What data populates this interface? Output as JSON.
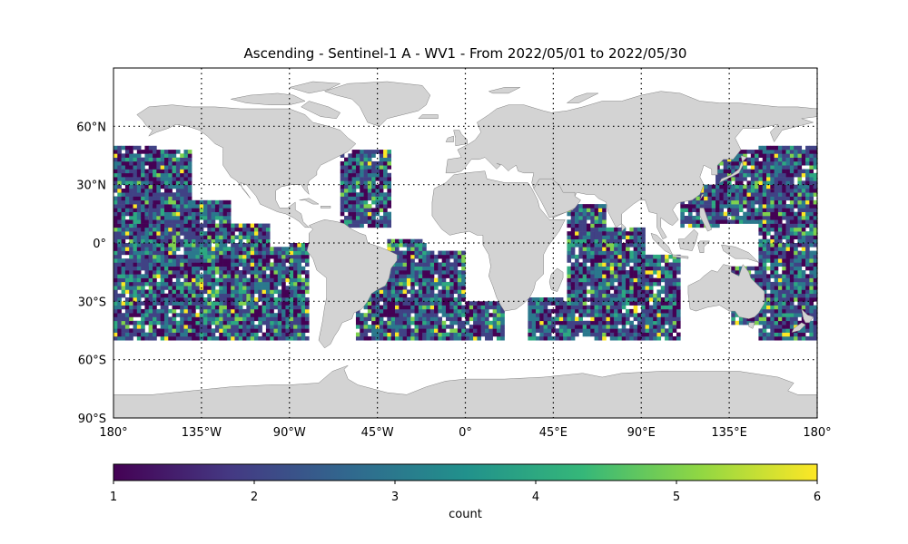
{
  "chart_data": {
    "type": "heatmap",
    "title": "Ascending - Sentinel-1 A - WV1 - From 2022/05/01 to 2022/05/30",
    "projection": "plate-carree",
    "xlim": [
      -180,
      180
    ],
    "ylim": [
      -90,
      90
    ],
    "grid": true,
    "x_tick_values": [
      -180,
      -135,
      -90,
      -45,
      0,
      45,
      90,
      135,
      180
    ],
    "x_tick_labels": [
      "180°",
      "135°W",
      "90°W",
      "45°W",
      "0°",
      "45°E",
      "90°E",
      "135°E",
      "180°"
    ],
    "y_tick_values": [
      60,
      30,
      0,
      -30,
      -60,
      -90
    ],
    "y_tick_labels": [
      "60°N",
      "30°N",
      "0°",
      "30°S",
      "60°S",
      "90°S"
    ],
    "data_lat_range": [
      -50,
      50
    ],
    "cell_size_deg": 2,
    "swaths": [
      {
        "lon_min": -180,
        "lon_max": -158,
        "lat_min": -50,
        "lat_max": 50
      },
      {
        "lon_min": -162,
        "lon_max": -140,
        "lat_min": -50,
        "lat_max": 48
      },
      {
        "lon_min": -144,
        "lon_max": -120,
        "lat_min": -50,
        "lat_max": 22
      },
      {
        "lon_min": -124,
        "lon_max": -100,
        "lat_min": -50,
        "lat_max": 10
      },
      {
        "lon_min": -100,
        "lon_max": -84,
        "lat_min": -50,
        "lat_max": -2
      },
      {
        "lon_min": -90,
        "lon_max": -80,
        "lat_min": -50,
        "lat_max": 0
      },
      {
        "lon_min": -64,
        "lon_max": -38,
        "lat_min": 8,
        "lat_max": 48
      },
      {
        "lon_min": -56,
        "lon_max": -30,
        "lat_min": -50,
        "lat_max": -10
      },
      {
        "lon_min": -40,
        "lon_max": -20,
        "lat_min": -50,
        "lat_max": 2
      },
      {
        "lon_min": -20,
        "lon_max": 0,
        "lat_min": -50,
        "lat_max": -4
      },
      {
        "lon_min": 0,
        "lon_max": 20,
        "lat_min": -50,
        "lat_max": -30
      },
      {
        "lon_min": 32,
        "lon_max": 56,
        "lat_min": -50,
        "lat_max": -28
      },
      {
        "lon_min": 52,
        "lon_max": 72,
        "lat_min": -48,
        "lat_max": 20
      },
      {
        "lon_min": 66,
        "lon_max": 92,
        "lat_min": -50,
        "lat_max": 8
      },
      {
        "lon_min": 90,
        "lon_max": 110,
        "lat_min": -50,
        "lat_max": -6
      },
      {
        "lon_min": 110,
        "lon_max": 130,
        "lat_min": 8,
        "lat_max": 30
      },
      {
        "lon_min": 128,
        "lon_max": 158,
        "lat_min": 10,
        "lat_max": 48
      },
      {
        "lon_min": 150,
        "lon_max": 180,
        "lat_min": -50,
        "lat_max": 50
      },
      {
        "lon_min": 136,
        "lon_max": 150,
        "lat_min": -42,
        "lat_max": -12
      }
    ],
    "colorbar": {
      "label": "count",
      "min": 1,
      "max": 6,
      "tick_values": [
        1,
        2,
        3,
        4,
        5,
        6
      ],
      "tick_labels": [
        "1",
        "2",
        "3",
        "4",
        "5",
        "6"
      ],
      "colormap": "viridis",
      "colors": [
        "#440154",
        "#443983",
        "#31688e",
        "#21918c",
        "#35b779",
        "#90d743",
        "#fde725"
      ],
      "orientation": "horizontal"
    },
    "land_color": "#d3d3d3",
    "coastline_color": "#808080"
  }
}
